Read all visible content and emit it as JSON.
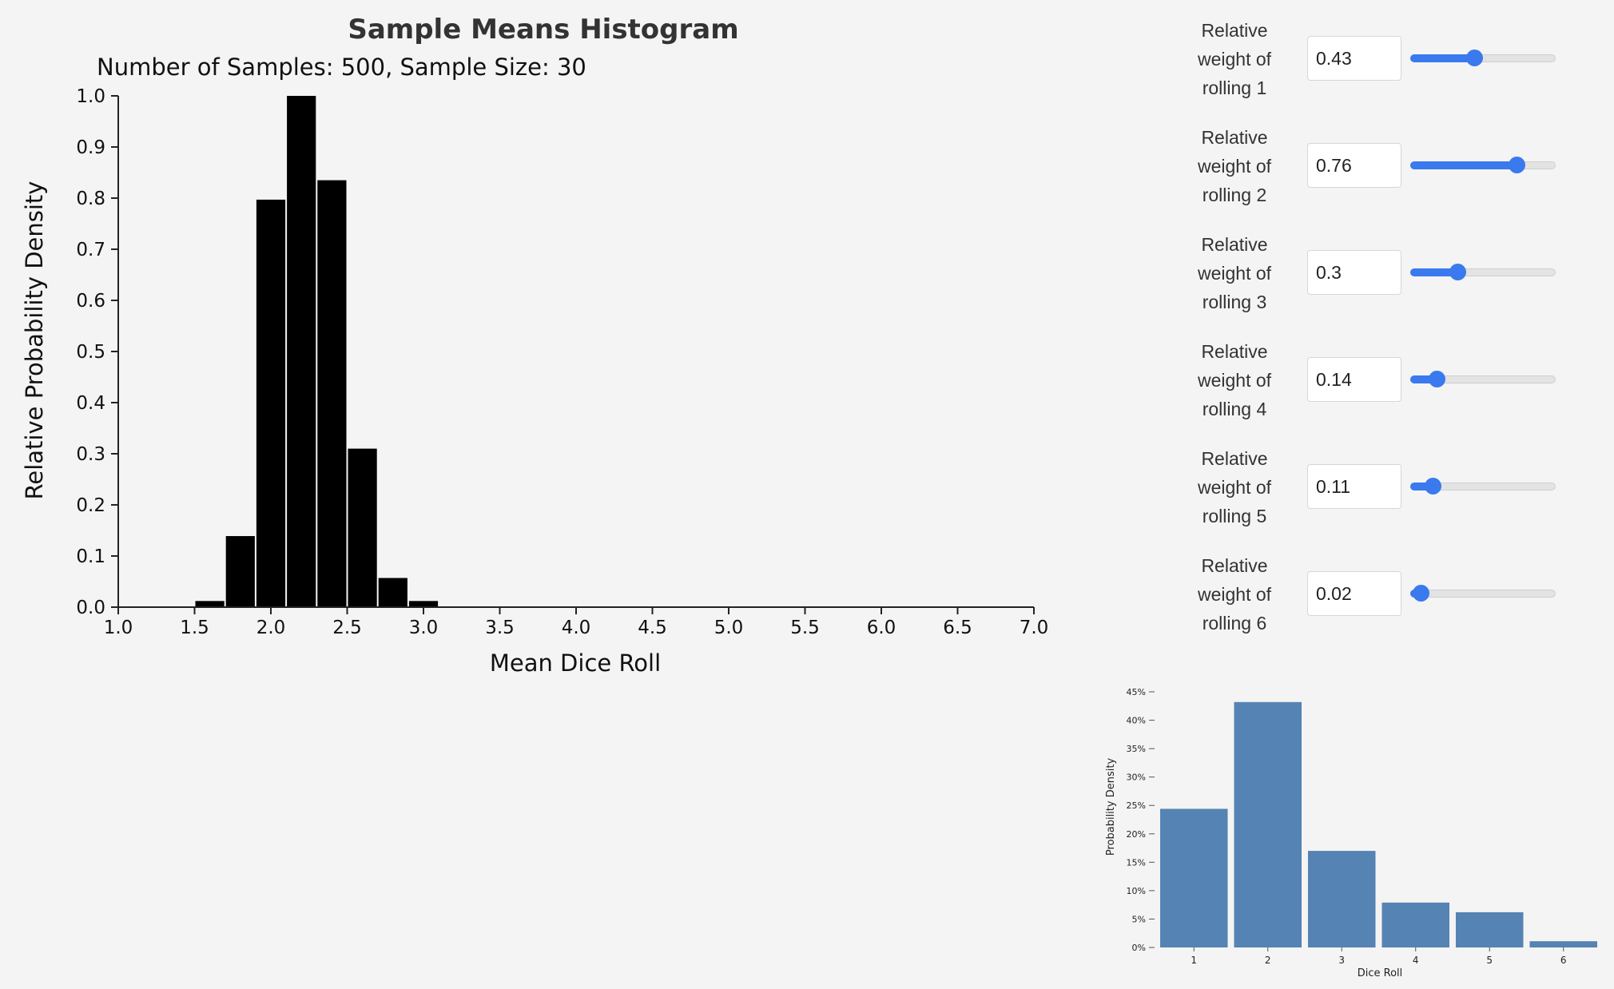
{
  "main_chart": {
    "title": "Sample Means Histogram",
    "subtitle": "Number of Samples: 500, Sample Size: 30",
    "xlabel": "Mean Dice Roll",
    "ylabel": "Relative Probability Density"
  },
  "weights": [
    {
      "label_lines": [
        "Relative",
        "weight of",
        "rolling 1"
      ],
      "value": "0.43",
      "level": 0.43
    },
    {
      "label_lines": [
        "Relative",
        "weight of",
        "rolling 2"
      ],
      "value": "0.76",
      "level": 0.76
    },
    {
      "label_lines": [
        "Relative",
        "weight of",
        "rolling 3"
      ],
      "value": "0.3",
      "level": 0.3
    },
    {
      "label_lines": [
        "Relative",
        "weight of",
        "rolling 4"
      ],
      "value": "0.14",
      "level": 0.14
    },
    {
      "label_lines": [
        "Relative",
        "weight of",
        "rolling 5"
      ],
      "value": "0.11",
      "level": 0.11
    },
    {
      "label_lines": [
        "Relative",
        "weight of",
        "rolling 6"
      ],
      "value": "0.02",
      "level": 0.02
    }
  ],
  "dist_chart": {
    "xlabel": "Dice Roll",
    "ylabel": "Probability Density"
  },
  "colors": {
    "histogram_bar": "#000000",
    "distribution_bar": "#5583b3",
    "slider_accent": "#3a79ee"
  },
  "chart_data": [
    {
      "type": "bar",
      "title": "Sample Means Histogram",
      "subtitle": "Number of Samples: 500, Sample Size: 30",
      "xlabel": "Mean Dice Roll",
      "ylabel": "Relative Probability Density",
      "xlim": [
        1.0,
        7.0
      ],
      "ylim": [
        0.0,
        1.0
      ],
      "x_ticks": [
        "1.0",
        "1.5",
        "2.0",
        "2.5",
        "3.0",
        "3.5",
        "4.0",
        "4.5",
        "5.0",
        "5.5",
        "6.0",
        "6.5",
        "7.0"
      ],
      "y_ticks": [
        "0.0",
        "0.1",
        "0.2",
        "0.3",
        "0.4",
        "0.5",
        "0.6",
        "0.7",
        "0.8",
        "0.9",
        "1.0"
      ],
      "bin_width": 0.2,
      "bins": [
        {
          "x0": 1.5,
          "x1": 1.7,
          "value": 0.012
        },
        {
          "x0": 1.7,
          "x1": 1.9,
          "value": 0.139
        },
        {
          "x0": 1.9,
          "x1": 2.1,
          "value": 0.797
        },
        {
          "x0": 2.1,
          "x1": 2.3,
          "value": 1.0
        },
        {
          "x0": 2.3,
          "x1": 2.5,
          "value": 0.835
        },
        {
          "x0": 2.5,
          "x1": 2.7,
          "value": 0.31
        },
        {
          "x0": 2.7,
          "x1": 2.9,
          "value": 0.057
        },
        {
          "x0": 2.9,
          "x1": 3.1,
          "value": 0.012
        }
      ],
      "grid": false
    },
    {
      "type": "bar",
      "xlabel": "Dice Roll",
      "ylabel": "Probability Density",
      "categories": [
        "1",
        "2",
        "3",
        "4",
        "5",
        "6"
      ],
      "values": [
        24.4,
        43.2,
        17.0,
        7.9,
        6.2,
        1.1
      ],
      "ylim": [
        0,
        45
      ],
      "y_ticks": [
        "0%",
        "5%",
        "10%",
        "15%",
        "20%",
        "25%",
        "30%",
        "35%",
        "40%",
        "45%"
      ],
      "grid": false
    }
  ]
}
